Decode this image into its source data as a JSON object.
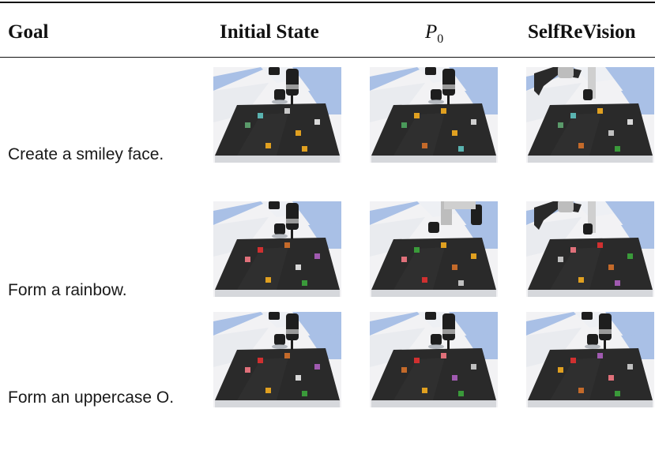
{
  "table": {
    "headers": {
      "goal": "Goal",
      "initial_state": "Initial State",
      "p0_main": "P",
      "p0_sub": "0",
      "selfrevision": "SelfReVision"
    },
    "rows": [
      {
        "goal": "Create a smiley face.",
        "cells": {
          "initial": {
            "cubes": [
              "#5a9a6a",
              "#5ab3b0",
              "#c9c9c9",
              "#e0a020",
              "#e0a020",
              "#e0a020",
              "#d9d9d9"
            ],
            "arm": "down"
          },
          "p0": {
            "cubes": [
              "#4a9a5a",
              "#e0a020",
              "#e0a020",
              "#e0a020",
              "#c46a2a",
              "#5ab3b0",
              "#d0d0d0"
            ],
            "arm": "down"
          },
          "selfrevision": {
            "cubes": [
              "#5a9a6a",
              "#5ab3b0",
              "#e0a020",
              "#c0c0c0",
              "#c46a2a",
              "#3a9a3a",
              "#d9d9d9"
            ],
            "arm": "tilted"
          }
        }
      },
      {
        "goal": "Form a rainbow.",
        "cells": {
          "initial": {
            "cubes": [
              "#e0707a",
              "#d03030",
              "#c46a2a",
              "#d9d9d9",
              "#e0a020",
              "#3a9a3a",
              "#a05ab0"
            ],
            "arm": "down"
          },
          "p0": {
            "cubes": [
              "#e0707a",
              "#3a9a3a",
              "#e0a020",
              "#c46a2a",
              "#d03030",
              "#c0c0c0",
              "#e0a020"
            ],
            "arm": "high"
          },
          "selfrevision": {
            "cubes": [
              "#c0c0c0",
              "#e0707a",
              "#d03030",
              "#c46a2a",
              "#e0a020",
              "#a05ab0",
              "#3a9a3a"
            ],
            "arm": "tilted"
          }
        }
      },
      {
        "goal": "Form an uppercase O.",
        "cells": {
          "initial": {
            "cubes": [
              "#e0707a",
              "#d03030",
              "#c46a2a",
              "#d9d9d9",
              "#e0a020",
              "#3a9a3a",
              "#a05ab0"
            ],
            "arm": "down"
          },
          "p0": {
            "cubes": [
              "#c46a2a",
              "#d03030",
              "#e0707a",
              "#a05ab0",
              "#e0a020",
              "#3a9a3a",
              "#c0c0c0"
            ],
            "arm": "down"
          },
          "selfrevision": {
            "cubes": [
              "#e0a020",
              "#d03030",
              "#a05ab0",
              "#e0707a",
              "#c46a2a",
              "#3a9a3a",
              "#c0c0c0"
            ],
            "arm": "down"
          }
        }
      }
    ]
  }
}
